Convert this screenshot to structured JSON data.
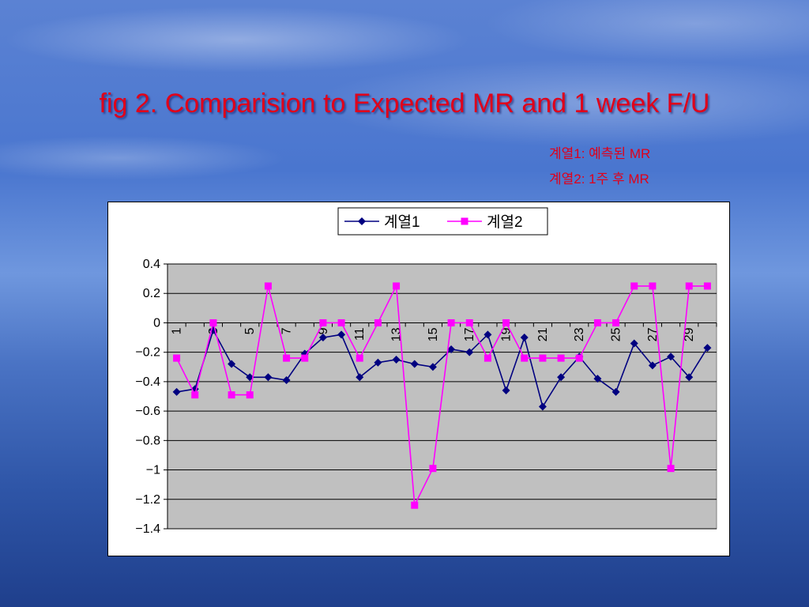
{
  "title": "fig 2. Comparision to Expected MR and 1 week F/U",
  "notes": [
    "계열1: 예측된 MR",
    "계열2: 1주 후 MR"
  ],
  "colors": {
    "title": "#e0001a",
    "series1": "#000080",
    "series2": "#ff00ff",
    "plot_bg": "#c0c0c0",
    "grid": "#000000"
  },
  "chart_data": {
    "type": "line",
    "title": "",
    "xlabel": "",
    "ylabel": "",
    "x": [
      1,
      2,
      3,
      4,
      5,
      6,
      7,
      8,
      9,
      10,
      11,
      12,
      13,
      14,
      15,
      16,
      17,
      18,
      19,
      20,
      21,
      22,
      23,
      24,
      25,
      26,
      27,
      28,
      29,
      30
    ],
    "x_tick_labels": [
      "1",
      "3",
      "5",
      "7",
      "9",
      "11",
      "13",
      "15",
      "17",
      "19",
      "21",
      "23",
      "25",
      "27",
      "29"
    ],
    "ylim": [
      -1.4,
      0.4
    ],
    "y_ticks": [
      0.4,
      0.2,
      0,
      -0.2,
      -0.4,
      -0.6,
      -0.8,
      -1,
      -1.2,
      -1.4
    ],
    "y_tick_labels": [
      "0.4",
      "0.2",
      "0",
      "−0.2",
      "−0.4",
      "−0.6",
      "−0.8",
      "−1",
      "−1.2",
      "−1.4"
    ],
    "grid": true,
    "legend_position": "top",
    "series": [
      {
        "name": "계열1",
        "marker": "diamond",
        "values": [
          -0.47,
          -0.45,
          -0.05,
          -0.28,
          -0.37,
          -0.37,
          -0.39,
          -0.21,
          -0.1,
          -0.08,
          -0.37,
          -0.27,
          -0.25,
          -0.28,
          -0.3,
          -0.18,
          -0.2,
          -0.08,
          -0.46,
          -0.1,
          -0.57,
          -0.37,
          -0.23,
          -0.38,
          -0.47,
          -0.14,
          -0.29,
          -0.23,
          -0.37,
          -0.17
        ]
      },
      {
        "name": "계열2",
        "marker": "square",
        "values": [
          -0.24,
          -0.49,
          0,
          -0.49,
          -0.49,
          0.25,
          -0.24,
          -0.24,
          0,
          0,
          -0.24,
          0,
          0.25,
          -1.24,
          -0.99,
          0,
          0,
          -0.24,
          0,
          -0.24,
          -0.24,
          -0.24,
          -0.24,
          0,
          0,
          0.25,
          0.25,
          -0.99,
          0.25,
          0.25
        ]
      }
    ]
  }
}
